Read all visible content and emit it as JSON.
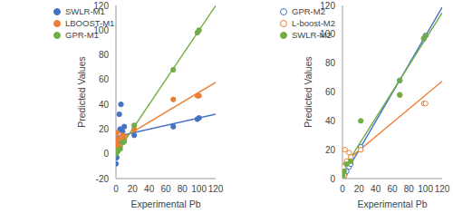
{
  "chart_data": [
    {
      "type": "scatter",
      "x_label": "Experimental Pb",
      "y_label": "Predicted Values",
      "xlim": [
        0,
        120
      ],
      "xticks": [
        0,
        20,
        40,
        60,
        80,
        100,
        120
      ],
      "ylim": [
        -20,
        120
      ],
      "yticks": [
        -20,
        0,
        20,
        40,
        60,
        80,
        100,
        120
      ],
      "grid": false,
      "legend": "upper left",
      "series": [
        {
          "name": "SWLR-M1",
          "color": "#4472c4",
          "marker": "filled",
          "line_style": "solid",
          "x": [
            0,
            1,
            2,
            3,
            4,
            5,
            6,
            8,
            10,
            22,
            69,
            98,
            100
          ],
          "values": [
            -8,
            -3,
            5,
            10,
            32,
            20,
            40,
            18,
            22,
            15,
            22,
            28,
            29
          ]
        },
        {
          "name": "LBOOST-M1",
          "color": "#ed7d31",
          "marker": "filled",
          "line_style": "solid",
          "x": [
            0,
            1,
            1,
            2,
            3,
            5,
            8,
            10,
            22,
            69,
            98,
            100
          ],
          "values": [
            8,
            10,
            17,
            5,
            12,
            6,
            15,
            12,
            20,
            44,
            47,
            47
          ]
        },
        {
          "name": "GPR-M1",
          "color": "#70ad47",
          "marker": "filled",
          "line_style": "solid",
          "x": [
            0,
            1,
            2,
            3,
            5,
            8,
            10,
            22,
            69,
            98,
            100
          ],
          "values": [
            0,
            1,
            2,
            3,
            4,
            9,
            10,
            23,
            68,
            98,
            100
          ]
        }
      ]
    },
    {
      "type": "scatter",
      "x_label": "Experimental Pb",
      "y_label": "Predicted Values",
      "xlim": [
        0,
        120
      ],
      "xticks": [
        0,
        20,
        40,
        60,
        80,
        100,
        120
      ],
      "ylim": [
        0,
        120
      ],
      "yticks": [
        0,
        20,
        40,
        60,
        80,
        100,
        120
      ],
      "grid": false,
      "legend": "upper left",
      "series": [
        {
          "name": "GPR-M2",
          "color": "#4472c4",
          "marker": "hollow",
          "line_style": "solid",
          "x": [
            0,
            1,
            2,
            3,
            5,
            8,
            10,
            22,
            69,
            98,
            100
          ],
          "values": [
            0,
            1,
            2,
            3,
            5,
            8,
            10,
            22,
            68,
            97,
            99
          ]
        },
        {
          "name": "L-boost-M2",
          "color": "#ed7d31",
          "marker": "hollow",
          "line_style": "solid",
          "x": [
            0,
            1,
            2,
            3,
            5,
            8,
            10,
            22,
            69,
            98,
            100
          ],
          "values": [
            5,
            8,
            2,
            20,
            12,
            18,
            15,
            20,
            58,
            52,
            52
          ]
        },
        {
          "name": "SWLR-M2",
          "color": "#70ad47",
          "marker": "filled",
          "line_style": "solid",
          "x": [
            0,
            2,
            5,
            10,
            22,
            69,
            69,
            98,
            100
          ],
          "values": [
            2,
            5,
            10,
            12,
            40,
            68,
            58,
            97,
            99
          ]
        }
      ]
    }
  ]
}
